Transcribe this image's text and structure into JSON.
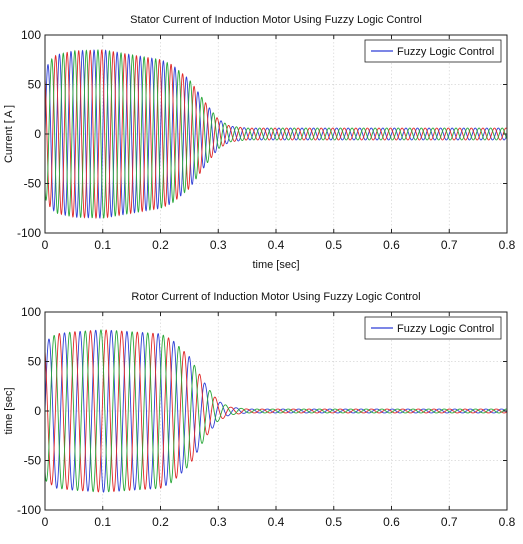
{
  "chart_data": [
    {
      "type": "line",
      "title": "Stator Current of Induction Motor Using Fuzzy Logic Control",
      "xlabel": "time [sec]",
      "ylabel": "Current  [ A ]",
      "xlim": [
        0,
        0.8
      ],
      "ylim": [
        -100,
        100
      ],
      "xticks": [
        "0",
        "0.1",
        "0.2",
        "0.3",
        "0.4",
        "0.5",
        "0.6",
        "0.7",
        "0.8"
      ],
      "yticks": [
        "100",
        "50",
        "0",
        "-50",
        "-100"
      ],
      "grid": true,
      "legend": {
        "placement": "top-right",
        "entries": [
          "Fuzzy Logic Control"
        ]
      },
      "series": [
        {
          "color": "#2f3fd6",
          "phase_deg": 0
        },
        {
          "color": "#e02828",
          "phase_deg": 120
        },
        {
          "color": "#2aa83a",
          "phase_deg": 240
        }
      ],
      "envelope": {
        "t": [
          0,
          0.01,
          0.02,
          0.05,
          0.1,
          0.15,
          0.2,
          0.22,
          0.25,
          0.28,
          0.3,
          0.32,
          0.35,
          0.8
        ],
        "amplitude": [
          65,
          75,
          80,
          84,
          85,
          80,
          75,
          70,
          55,
          30,
          15,
          8,
          6,
          6
        ]
      },
      "frequency_hz": 50
    },
    {
      "type": "line",
      "title": "Rotor Current of Induction Motor Using Fuzzy Logic Control",
      "xlabel": "",
      "ylabel": "time [sec]",
      "xlim": [
        0,
        0.8
      ],
      "ylim": [
        -100,
        100
      ],
      "xticks": [
        "0",
        "0.1",
        "0.2",
        "0.3",
        "0.4",
        "0.5",
        "0.6",
        "0.7",
        "0.8"
      ],
      "yticks": [
        "100",
        "50",
        "0",
        "-50",
        "-100"
      ],
      "grid": true,
      "legend": {
        "placement": "top-right",
        "entries": [
          "Fuzzy Logic Control"
        ]
      },
      "series": [
        {
          "color": "#2f3fd6",
          "phase_deg": 0
        },
        {
          "color": "#e02828",
          "phase_deg": 120
        },
        {
          "color": "#2aa83a",
          "phase_deg": 240
        }
      ],
      "envelope": {
        "t": [
          0,
          0.02,
          0.05,
          0.1,
          0.15,
          0.2,
          0.22,
          0.25,
          0.28,
          0.3,
          0.32,
          0.35,
          0.8
        ],
        "amplitude": [
          70,
          78,
          80,
          82,
          80,
          78,
          72,
          55,
          25,
          10,
          4,
          2,
          2
        ]
      },
      "frequency_hz": 37
    }
  ]
}
